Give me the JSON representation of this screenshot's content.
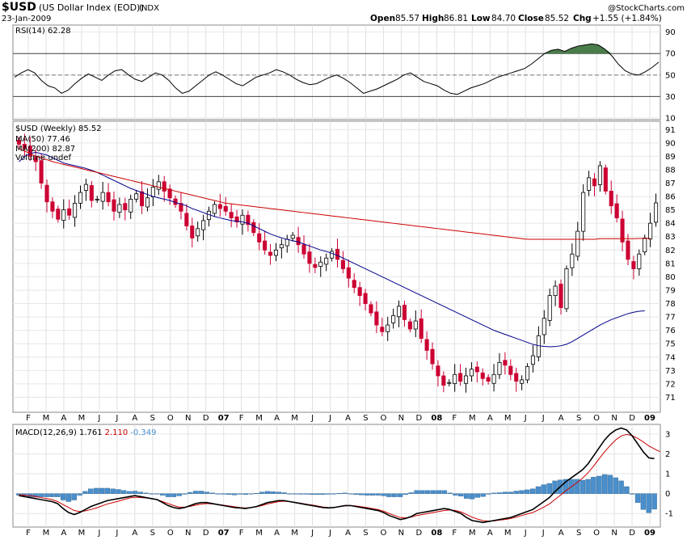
{
  "header": {
    "symbol": "$USD",
    "name": "(US Dollar Index (EOD))",
    "exchange": "INDX",
    "date": "23-Jan-2009",
    "watermark": "@StockCharts.com",
    "open_label": "Open",
    "open": "85.57",
    "high_label": "High",
    "high": "86.81",
    "low_label": "Low",
    "low": "84.70",
    "close_label": "Close",
    "close": "85.52",
    "chg_label": "Chg",
    "chg": "+1.55 (+1.84%)",
    "chg_color": "#008000"
  },
  "chart_data": [
    {
      "type": "line",
      "panel": "rsi",
      "legend": "RSI(14) 62.28",
      "ylim": [
        10,
        95
      ],
      "yticks": [
        10,
        30,
        50,
        70,
        90
      ],
      "reference_lines": [
        30,
        50,
        70
      ],
      "line_color": "#000000",
      "overbought_fill": "#4a7c4a",
      "oversold_fill": "#a05050",
      "values": [
        48,
        52,
        55,
        52,
        45,
        40,
        38,
        33,
        36,
        42,
        47,
        51,
        48,
        45,
        50,
        54,
        55,
        50,
        46,
        44,
        48,
        52,
        50,
        45,
        38,
        33,
        35,
        40,
        45,
        50,
        53,
        50,
        46,
        42,
        40,
        44,
        48,
        50,
        52,
        55,
        53,
        50,
        46,
        43,
        41,
        42,
        45,
        48,
        50,
        47,
        43,
        38,
        33,
        35,
        37,
        40,
        43,
        46,
        50,
        52,
        48,
        44,
        42,
        40,
        36,
        33,
        32,
        35,
        38,
        40,
        42,
        45,
        48,
        50,
        52,
        54,
        56,
        60,
        65,
        70,
        73,
        74,
        72,
        75,
        77,
        78,
        79,
        78,
        74,
        68,
        60,
        54,
        51,
        50,
        53,
        57,
        62
      ]
    },
    {
      "type": "candlestick",
      "panel": "price",
      "legend": [
        "$USD (Weekly) 85.52",
        "MA(50) 77.46",
        "MA(200) 82.87",
        "Volume undef"
      ],
      "legend_colors": [
        "#000000",
        "#00008b",
        "#cc0000",
        "#000000"
      ],
      "ylim": [
        70,
        91.5
      ],
      "yticks": [
        71,
        72,
        73,
        74,
        75,
        76,
        77,
        78,
        79,
        80,
        81,
        82,
        83,
        84,
        85,
        86,
        87,
        88,
        89,
        90,
        91
      ],
      "up_color": "#ffffff",
      "down_color": "#cc0033",
      "closes": [
        89.9,
        89.6,
        89.0,
        88.6,
        87.0,
        85.6,
        84.9,
        84.3,
        85.0,
        84.6,
        85.5,
        86.3,
        86.9,
        85.7,
        85.8,
        86.3,
        85.6,
        84.9,
        85.4,
        85.0,
        85.8,
        86.2,
        85.3,
        85.9,
        86.7,
        87.1,
        86.4,
        85.9,
        85.4,
        84.9,
        83.8,
        82.9,
        83.6,
        84.2,
        84.9,
        85.4,
        85.1,
        84.9,
        84.4,
        84.1,
        84.6,
        83.9,
        83.3,
        82.6,
        82.0,
        81.6,
        82.0,
        82.4,
        82.8,
        83.1,
        82.4,
        81.7,
        81.0,
        80.7,
        81.1,
        81.4,
        81.9,
        81.3,
        80.6,
        79.9,
        79.2,
        78.6,
        78.0,
        77.3,
        76.4,
        75.9,
        76.4,
        77.1,
        77.8,
        76.8,
        76.1,
        76.7,
        75.4,
        74.5,
        73.5,
        72.6,
        71.9,
        72.1,
        72.7,
        72.2,
        72.6,
        73.1,
        72.9,
        72.4,
        72.2,
        72.7,
        73.6,
        73.4,
        72.7,
        72.2,
        72.3,
        73.3,
        74.1,
        75.6,
        76.9,
        78.6,
        79.3,
        77.7,
        80.6,
        81.7,
        83.4,
        86.3,
        87.4,
        86.8,
        88.3,
        86.4,
        85.3,
        84.4,
        82.6,
        81.3,
        80.6,
        81.7,
        82.9,
        84.0,
        85.52
      ],
      "ma50": [
        88.6,
        89.0,
        89.2,
        89.3,
        89.2,
        89.1,
        88.9,
        88.7,
        88.5,
        88.4,
        88.3,
        88.2,
        88.1,
        87.95,
        87.8,
        87.6,
        87.4,
        87.2,
        87.0,
        86.8,
        86.6,
        86.45,
        86.3,
        86.15,
        86.0,
        85.9,
        85.8,
        85.7,
        85.55,
        85.45,
        85.3,
        85.1,
        84.95,
        84.8,
        84.65,
        84.5,
        84.4,
        84.3,
        84.2,
        84.15,
        84.1,
        84.0,
        83.8,
        83.6,
        83.4,
        83.2,
        83.05,
        82.9,
        82.8,
        82.7,
        82.6,
        82.45,
        82.3,
        82.15,
        82.0,
        81.9,
        81.75,
        81.6,
        81.4,
        81.2,
        81.0,
        80.8,
        80.6,
        80.4,
        80.2,
        80.0,
        79.8,
        79.6,
        79.4,
        79.2,
        79.0,
        78.8,
        78.6,
        78.4,
        78.2,
        78.0,
        77.8,
        77.6,
        77.4,
        77.2,
        77.0,
        76.8,
        76.6,
        76.4,
        76.2,
        76.0,
        75.85,
        75.7,
        75.55,
        75.4,
        75.25,
        75.1,
        74.95,
        74.85,
        74.8,
        74.77,
        74.79,
        74.85,
        74.96,
        75.15,
        75.4,
        75.65,
        75.9,
        76.15,
        76.4,
        76.6,
        76.8,
        76.95,
        77.1,
        77.25,
        77.35,
        77.43,
        77.46
      ],
      "ma200": [
        null,
        null,
        null,
        null,
        null,
        null,
        null,
        null,
        null,
        null,
        null,
        null,
        null,
        null,
        null,
        null,
        null,
        null,
        null,
        null,
        null,
        null,
        null,
        null,
        null,
        null,
        null,
        null,
        null,
        null,
        null,
        null,
        null,
        null,
        null,
        null,
        null,
        null,
        null,
        null,
        null,
        null,
        null,
        null,
        null,
        null,
        null,
        null,
        null,
        null,
        null,
        null,
        null,
        null,
        null,
        null,
        null,
        null,
        null,
        null,
        null,
        null,
        null,
        null,
        null,
        null,
        null,
        null,
        null,
        null,
        null,
        null,
        null,
        null,
        null,
        null,
        null,
        null,
        null,
        null,
        null,
        null,
        null,
        null,
        null,
        null,
        null,
        null,
        null,
        null,
        null,
        null,
        null,
        null,
        null,
        null,
        null,
        null,
        null,
        null,
        null,
        null,
        null,
        null,
        null,
        null,
        null,
        null,
        null,
        null,
        null,
        null,
        null,
        null,
        null
      ],
      "ma200_values": [
        89.6,
        89.4,
        89.2,
        89.0,
        88.9,
        88.75,
        88.6,
        88.5,
        88.4,
        88.3,
        88.2,
        88.1,
        88.0,
        87.9,
        87.8,
        87.7,
        87.6,
        87.5,
        87.4,
        87.3,
        87.2,
        87.1,
        87.0,
        86.9,
        86.8,
        86.7,
        86.6,
        86.5,
        86.4,
        86.3,
        86.2,
        86.1,
        86.0,
        85.9,
        85.8,
        85.7,
        85.6,
        85.5,
        85.45,
        85.4,
        85.35,
        85.3,
        85.25,
        85.2,
        85.15,
        85.1,
        85.05,
        85.0,
        84.95,
        84.9,
        84.85,
        84.8,
        84.75,
        84.7,
        84.65,
        84.6,
        84.55,
        84.5,
        84.45,
        84.4,
        84.35,
        84.3,
        84.25,
        84.2,
        84.15,
        84.1,
        84.05,
        84.0,
        83.95,
        83.9,
        83.85,
        83.8,
        83.75,
        83.7,
        83.65,
        83.6,
        83.55,
        83.5,
        83.45,
        83.4,
        83.35,
        83.3,
        83.25,
        83.2,
        83.15,
        83.1,
        83.05,
        83.0,
        82.95,
        82.9,
        82.85,
        82.8,
        82.8,
        82.8,
        82.8,
        82.8,
        82.8,
        82.8,
        82.8,
        82.8,
        82.8,
        82.8,
        82.8,
        82.8,
        82.85,
        82.85,
        82.85,
        82.85,
        82.85,
        82.85,
        82.85,
        82.86,
        82.86,
        82.87
      ]
    },
    {
      "type": "line",
      "panel": "macd",
      "legend_prefix": "MACD(12,26,9)",
      "legend_macd": "1.761",
      "legend_signal": "2.110",
      "legend_hist": "-0.349",
      "ylim": [
        -1.6,
        3.4
      ],
      "yticks": [
        -1,
        0,
        1,
        2,
        3
      ],
      "macd_color": "#000000",
      "signal_color": "#cc0000",
      "hist_color": "#4a8fcc",
      "macd": [
        -0.1,
        -0.15,
        -0.2,
        -0.25,
        -0.3,
        -0.35,
        -0.4,
        -0.5,
        -0.75,
        -0.95,
        -1.05,
        -0.95,
        -0.8,
        -0.65,
        -0.55,
        -0.45,
        -0.35,
        -0.3,
        -0.25,
        -0.2,
        -0.15,
        -0.1,
        -0.15,
        -0.2,
        -0.25,
        -0.3,
        -0.45,
        -0.6,
        -0.7,
        -0.75,
        -0.7,
        -0.6,
        -0.5,
        -0.45,
        -0.45,
        -0.5,
        -0.55,
        -0.6,
        -0.65,
        -0.7,
        -0.72,
        -0.75,
        -0.7,
        -0.65,
        -0.55,
        -0.45,
        -0.4,
        -0.35,
        -0.35,
        -0.4,
        -0.45,
        -0.5,
        -0.55,
        -0.6,
        -0.65,
        -0.7,
        -0.72,
        -0.7,
        -0.65,
        -0.6,
        -0.6,
        -0.65,
        -0.7,
        -0.75,
        -0.8,
        -0.85,
        -0.95,
        -1.1,
        -1.2,
        -1.3,
        -1.25,
        -1.15,
        -1.0,
        -0.95,
        -0.9,
        -0.85,
        -0.8,
        -0.75,
        -0.8,
        -0.9,
        -1.0,
        -1.2,
        -1.35,
        -1.4,
        -1.45,
        -1.4,
        -1.35,
        -1.3,
        -1.25,
        -1.2,
        -1.1,
        -1.0,
        -0.9,
        -0.8,
        -0.6,
        -0.4,
        -0.2,
        0.1,
        0.35,
        0.6,
        0.8,
        1.0,
        1.2,
        1.5,
        1.9,
        2.3,
        2.7,
        3.0,
        3.2,
        3.3,
        3.2,
        2.9,
        2.5,
        2.1,
        1.8,
        1.761
      ],
      "signal": [
        -0.05,
        -0.08,
        -0.1,
        -0.14,
        -0.2,
        -0.25,
        -0.3,
        -0.4,
        -0.55,
        -0.7,
        -0.85,
        -0.9,
        -0.87,
        -0.8,
        -0.72,
        -0.62,
        -0.52,
        -0.45,
        -0.38,
        -0.3,
        -0.22,
        -0.18,
        -0.2,
        -0.22,
        -0.25,
        -0.3,
        -0.4,
        -0.5,
        -0.6,
        -0.68,
        -0.68,
        -0.64,
        -0.58,
        -0.53,
        -0.5,
        -0.52,
        -0.55,
        -0.58,
        -0.62,
        -0.66,
        -0.7,
        -0.72,
        -0.7,
        -0.66,
        -0.6,
        -0.52,
        -0.46,
        -0.4,
        -0.38,
        -0.4,
        -0.44,
        -0.48,
        -0.53,
        -0.57,
        -0.62,
        -0.67,
        -0.7,
        -0.7,
        -0.66,
        -0.62,
        -0.6,
        -0.62,
        -0.66,
        -0.7,
        -0.75,
        -0.8,
        -0.88,
        -1.0,
        -1.1,
        -1.2,
        -1.22,
        -1.18,
        -1.1,
        -1.05,
        -1.0,
        -0.95,
        -0.9,
        -0.85,
        -0.82,
        -0.85,
        -0.92,
        -1.05,
        -1.18,
        -1.28,
        -1.36,
        -1.38,
        -1.37,
        -1.33,
        -1.3,
        -1.25,
        -1.18,
        -1.1,
        -1.02,
        -0.95,
        -0.82,
        -0.68,
        -0.52,
        -0.3,
        -0.08,
        0.15,
        0.35,
        0.55,
        0.78,
        1.05,
        1.38,
        1.75,
        2.1,
        2.42,
        2.7,
        2.9,
        2.98,
        2.92,
        2.78,
        2.6,
        2.4,
        2.25,
        2.11
      ]
    }
  ],
  "x_axis": {
    "months": [
      "F",
      "M",
      "A",
      "M",
      "J",
      "J",
      "A",
      "S",
      "O",
      "N",
      "D",
      "07",
      "F",
      "M",
      "A",
      "M",
      "J",
      "J",
      "A",
      "S",
      "O",
      "N",
      "D",
      "08",
      "F",
      "M",
      "A",
      "M",
      "J",
      "J",
      "A",
      "S",
      "O",
      "N",
      "D",
      "09"
    ],
    "bold_labels": [
      "07",
      "08",
      "09"
    ]
  }
}
